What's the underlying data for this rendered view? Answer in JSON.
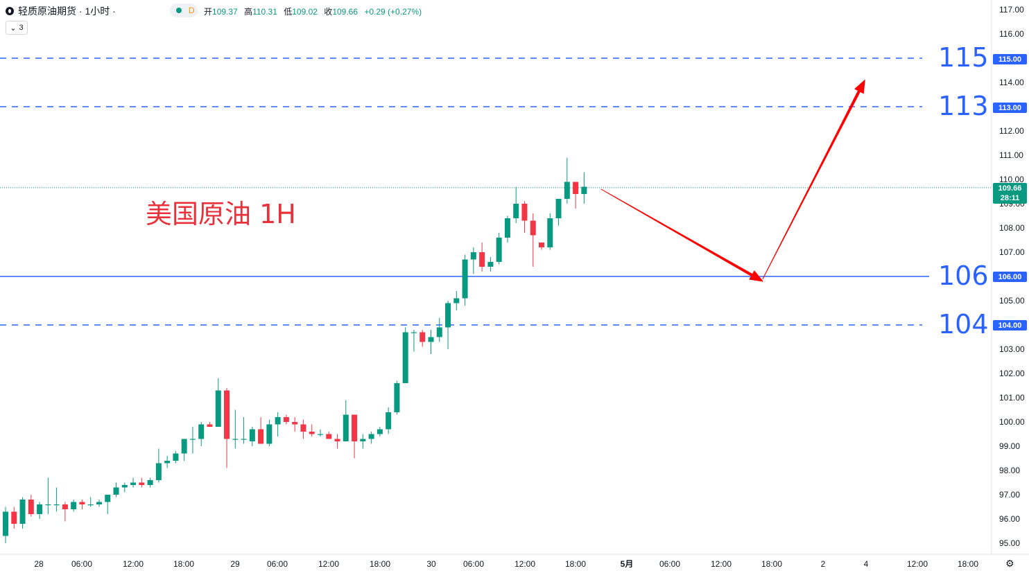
{
  "header": {
    "title": "轻质原油期货 · 1小时 ·",
    "pill_letter": "D",
    "ohlc": [
      {
        "key": "开",
        "val": "109.37"
      },
      {
        "key": "高",
        "val": "110.31"
      },
      {
        "key": "低",
        "val": "109.02"
      },
      {
        "key": "收",
        "val": "109.66"
      }
    ],
    "change": "+0.29 (+0.27%)",
    "indicator_count": "3"
  },
  "overlay_label": "美国原油 1H",
  "last_price": {
    "value": "109.66",
    "countdown": "28:11"
  },
  "levels": [
    {
      "big": "115",
      "badge": "115.00",
      "price": 115,
      "style": "dashed"
    },
    {
      "big": "113",
      "badge": "113.00",
      "price": 113,
      "style": "dashed"
    },
    {
      "big": "106",
      "badge": "106.00",
      "price": 106,
      "style": "solid"
    },
    {
      "big": "104",
      "badge": "104.00",
      "price": 104,
      "style": "dashed"
    }
  ],
  "colors": {
    "up": "#089981",
    "down": "#f23645",
    "level": "#2962ff",
    "arrow": "#ff0000",
    "text": "#131722"
  },
  "chart_data": {
    "type": "candlestick",
    "timeframe": "1H",
    "ylim": [
      94.7,
      117.3
    ],
    "y_ticks": [
      "117.00",
      "116.00",
      "115.00",
      "114.00",
      "113.00",
      "112.00",
      "111.00",
      "110.00",
      "109.00",
      "108.00",
      "107.00",
      "106.00",
      "105.00",
      "104.00",
      "103.00",
      "102.00",
      "101.00",
      "100.00",
      "99.00",
      "98.00",
      "97.00",
      "96.00",
      "95.00"
    ],
    "x_ticks": [
      "28",
      "06:00",
      "12:00",
      "18:00",
      "29",
      "06:00",
      "12:00",
      "18:00",
      "30",
      "06:00",
      "12:00",
      "18:00",
      "5月",
      "06:00",
      "12:00",
      "18:00",
      "2",
      "4",
      "12:00",
      "18:00"
    ],
    "candles": [
      {
        "o": 95.3,
        "h": 96.5,
        "l": 95.0,
        "c": 96.3
      },
      {
        "o": 96.3,
        "h": 96.5,
        "l": 95.6,
        "c": 95.8
      },
      {
        "o": 95.8,
        "h": 96.9,
        "l": 95.6,
        "c": 96.8
      },
      {
        "o": 96.8,
        "h": 97.0,
        "l": 96.1,
        "c": 96.2
      },
      {
        "o": 96.2,
        "h": 96.7,
        "l": 96.0,
        "c": 96.6
      },
      {
        "o": 96.6,
        "h": 97.7,
        "l": 96.2,
        "c": 96.6
      },
      {
        "o": 96.6,
        "h": 97.3,
        "l": 96.3,
        "c": 96.6
      },
      {
        "o": 96.6,
        "h": 96.7,
        "l": 95.9,
        "c": 96.4
      },
      {
        "o": 96.4,
        "h": 96.8,
        "l": 96.3,
        "c": 96.7
      },
      {
        "o": 96.7,
        "h": 96.8,
        "l": 96.4,
        "c": 96.6
      },
      {
        "o": 96.6,
        "h": 96.9,
        "l": 96.5,
        "c": 96.6
      },
      {
        "o": 96.6,
        "h": 96.8,
        "l": 96.5,
        "c": 96.7
      },
      {
        "o": 96.7,
        "h": 96.8,
        "l": 96.2,
        "c": 97.0
      },
      {
        "o": 97.0,
        "h": 97.5,
        "l": 96.9,
        "c": 97.3
      },
      {
        "o": 97.3,
        "h": 97.5,
        "l": 97.1,
        "c": 97.4
      },
      {
        "o": 97.4,
        "h": 97.7,
        "l": 97.3,
        "c": 97.5
      },
      {
        "o": 97.5,
        "h": 97.7,
        "l": 97.3,
        "c": 97.4
      },
      {
        "o": 97.4,
        "h": 97.7,
        "l": 97.3,
        "c": 97.6
      },
      {
        "o": 97.6,
        "h": 98.9,
        "l": 97.5,
        "c": 98.3
      },
      {
        "o": 98.3,
        "h": 98.6,
        "l": 98.1,
        "c": 98.4
      },
      {
        "o": 98.4,
        "h": 98.8,
        "l": 98.3,
        "c": 98.7
      },
      {
        "o": 98.7,
        "h": 99.3,
        "l": 98.4,
        "c": 99.3
      },
      {
        "o": 99.3,
        "h": 99.8,
        "l": 98.7,
        "c": 99.3
      },
      {
        "o": 99.3,
        "h": 100.0,
        "l": 99.0,
        "c": 99.9
      },
      {
        "o": 99.9,
        "h": 100.0,
        "l": 99.8,
        "c": 99.8
      },
      {
        "o": 99.8,
        "h": 101.8,
        "l": 99.8,
        "c": 101.3
      },
      {
        "o": 101.3,
        "h": 101.4,
        "l": 98.1,
        "c": 99.3
      },
      {
        "o": 99.3,
        "h": 100.5,
        "l": 98.9,
        "c": 99.3
      },
      {
        "o": 99.3,
        "h": 100.2,
        "l": 99.1,
        "c": 99.3
      },
      {
        "o": 99.2,
        "h": 99.8,
        "l": 99.0,
        "c": 99.7
      },
      {
        "o": 99.7,
        "h": 100.2,
        "l": 99.1,
        "c": 99.1
      },
      {
        "o": 99.1,
        "h": 100.1,
        "l": 99.0,
        "c": 99.9
      },
      {
        "o": 99.9,
        "h": 100.4,
        "l": 99.4,
        "c": 100.2
      },
      {
        "o": 100.2,
        "h": 100.3,
        "l": 99.9,
        "c": 100.0
      },
      {
        "o": 100.0,
        "h": 100.2,
        "l": 99.6,
        "c": 99.9
      },
      {
        "o": 99.9,
        "h": 100.1,
        "l": 99.3,
        "c": 99.6
      },
      {
        "o": 99.6,
        "h": 99.9,
        "l": 99.4,
        "c": 99.5
      },
      {
        "o": 99.5,
        "h": 99.7,
        "l": 99.4,
        "c": 99.5
      },
      {
        "o": 99.5,
        "h": 99.6,
        "l": 99.3,
        "c": 99.3
      },
      {
        "o": 99.3,
        "h": 99.5,
        "l": 98.9,
        "c": 99.2
      },
      {
        "o": 99.2,
        "h": 100.9,
        "l": 99.2,
        "c": 100.3
      },
      {
        "o": 100.3,
        "h": 100.3,
        "l": 98.5,
        "c": 99.2
      },
      {
        "o": 99.2,
        "h": 99.5,
        "l": 98.9,
        "c": 99.3
      },
      {
        "o": 99.3,
        "h": 99.6,
        "l": 99.1,
        "c": 99.5
      },
      {
        "o": 99.5,
        "h": 99.8,
        "l": 99.4,
        "c": 99.7
      },
      {
        "o": 99.7,
        "h": 100.6,
        "l": 99.5,
        "c": 100.4
      },
      {
        "o": 100.4,
        "h": 101.7,
        "l": 100.3,
        "c": 101.6
      },
      {
        "o": 101.6,
        "h": 103.9,
        "l": 101.6,
        "c": 103.7
      },
      {
        "o": 103.7,
        "h": 103.8,
        "l": 102.9,
        "c": 103.7
      },
      {
        "o": 103.7,
        "h": 103.8,
        "l": 103.1,
        "c": 103.3
      },
      {
        "o": 103.3,
        "h": 103.8,
        "l": 102.8,
        "c": 103.5
      },
      {
        "o": 103.5,
        "h": 104.3,
        "l": 103.3,
        "c": 103.9
      },
      {
        "o": 103.9,
        "h": 105.0,
        "l": 103.0,
        "c": 104.9
      },
      {
        "o": 104.9,
        "h": 105.4,
        "l": 104.6,
        "c": 105.1
      },
      {
        "o": 105.1,
        "h": 106.9,
        "l": 104.8,
        "c": 106.7
      },
      {
        "o": 106.7,
        "h": 107.2,
        "l": 106.1,
        "c": 107.0
      },
      {
        "o": 107.0,
        "h": 107.4,
        "l": 106.2,
        "c": 106.4
      },
      {
        "o": 106.4,
        "h": 106.8,
        "l": 106.2,
        "c": 106.6
      },
      {
        "o": 106.6,
        "h": 107.8,
        "l": 106.5,
        "c": 107.6
      },
      {
        "o": 107.6,
        "h": 108.5,
        "l": 107.4,
        "c": 108.4
      },
      {
        "o": 108.4,
        "h": 109.7,
        "l": 108.2,
        "c": 109.0
      },
      {
        "o": 109.0,
        "h": 109.1,
        "l": 107.8,
        "c": 108.3
      },
      {
        "o": 108.3,
        "h": 108.6,
        "l": 106.4,
        "c": 107.7
      },
      {
        "o": 107.4,
        "h": 107.4,
        "l": 107.1,
        "c": 107.2
      },
      {
        "o": 107.2,
        "h": 108.6,
        "l": 107.1,
        "c": 108.4
      },
      {
        "o": 108.4,
        "h": 109.2,
        "l": 108.1,
        "c": 109.2
      },
      {
        "o": 109.2,
        "h": 110.9,
        "l": 109.0,
        "c": 109.9
      },
      {
        "o": 109.9,
        "h": 109.9,
        "l": 108.8,
        "c": 109.4
      },
      {
        "o": 109.4,
        "h": 110.3,
        "l": 109.0,
        "c": 109.7
      }
    ],
    "annotations": {
      "arrow_down": {
        "from_index": 70,
        "from_price": 109.6,
        "to_index": 89,
        "to_price": 105.8
      },
      "arrow_up": {
        "from_index": 89,
        "from_price": 105.9,
        "to_index": 101,
        "to_price": 114.1
      }
    }
  }
}
